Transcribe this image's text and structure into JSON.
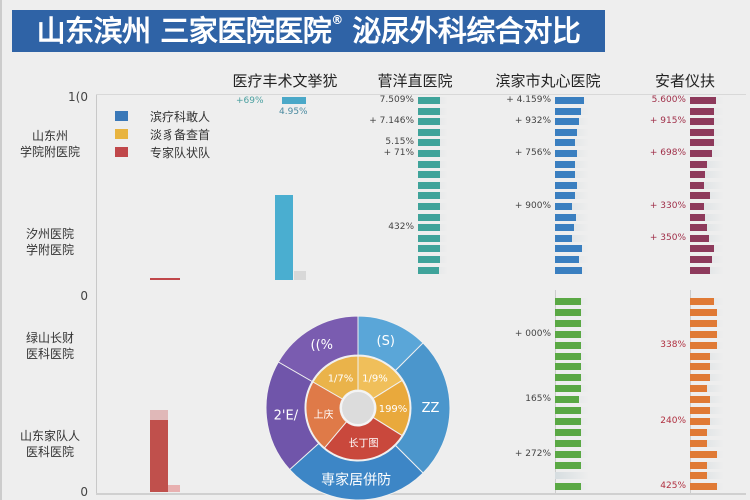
{
  "title": {
    "text": "山东滨州 三家医院医院",
    "mark": "®",
    "text2": "泌尿外科综合对比"
  },
  "chart_data": {
    "type": "bar",
    "title": "山东滨州 三家医院医院® 泌尿外科综合对比",
    "y_ticks": [
      "1(0",
      "0",
      "0"
    ],
    "row_labels": [
      [
        "山东州",
        "学院附医院"
      ],
      [
        "汐州医院",
        "学附医院"
      ],
      [
        "绿山长财",
        "医科医院"
      ],
      [
        "山东家队人",
        "医科医院"
      ]
    ],
    "column_titles": [
      "医疗丰术文挙犹",
      "菅洋直医院",
      "滨家市丸心医院",
      "安者仪扶"
    ],
    "legend": [
      {
        "label": "滨疗科敢人",
        "color": "#3a78b8"
      },
      {
        "label": "淡豸备查首",
        "color": "#e8b440"
      },
      {
        "label": "专家队状队",
        "color": "#c0474a"
      }
    ],
    "left_bars": {
      "top_label_left": "+69%",
      "top_label": "4.95%",
      "teal_value": 0.47,
      "red_small_value": 0.01,
      "red_bottom_value": 0.37
    },
    "bar_columns": [
      {
        "name": "菅洋直医院",
        "color": "#3fa39a",
        "values": [
          0.73,
          0.73,
          0.73,
          0.73,
          0.73,
          0.73,
          0.73,
          0.73,
          0.73,
          0.73,
          0.73,
          0.73,
          0.72,
          0.72,
          0.72,
          0.72,
          0.71
        ],
        "labels": [
          {
            "row": 0,
            "text": "7.509%"
          },
          {
            "row": 2,
            "text": "+ 7.146%"
          },
          {
            "row": 4,
            "text": "5.15%"
          },
          {
            "row": 5,
            "text": "+ 71%"
          },
          {
            "row": 12,
            "text": "432%"
          }
        ],
        "label_color": "#444"
      },
      {
        "name": "滨家市丸心医院",
        "color": "#3a7fc0",
        "values": [
          0.85,
          0.75,
          0.7,
          0.65,
          0.6,
          0.65,
          0.6,
          0.58,
          0.66,
          0.6,
          0.5,
          0.62,
          0.55,
          0.5,
          0.8,
          0.7,
          0.78
        ],
        "labels": [
          {
            "row": 0,
            "text": "+ 4.159%"
          },
          {
            "row": 2,
            "text": "+ 932%"
          },
          {
            "row": 5,
            "text": "+ 756%"
          },
          {
            "row": 10,
            "text": "+ 900%"
          }
        ],
        "label_color": "#444"
      },
      {
        "name": "安者仪扶",
        "color": "#8e3a5c",
        "values": [
          0.75,
          0.72,
          0.72,
          0.72,
          0.7,
          0.65,
          0.5,
          0.45,
          0.4,
          0.6,
          0.42,
          0.45,
          0.5,
          0.55,
          0.72,
          0.65,
          0.6
        ],
        "labels": [
          {
            "row": 0,
            "text": "5.600%"
          },
          {
            "row": 2,
            "text": "+ 915%"
          },
          {
            "row": 5,
            "text": "+ 698%"
          },
          {
            "row": 10,
            "text": "+ 330%"
          },
          {
            "row": 13,
            "text": "+ 350%"
          }
        ],
        "label_color": "#a0304a"
      },
      {
        "name": "green",
        "color": "#5aa844",
        "values": [
          0.75,
          0.75,
          0.75,
          0.75,
          0.75,
          0.75,
          0.75,
          0.75,
          0.75,
          0.7,
          0.75,
          0.75,
          0.75,
          0.75,
          0.75,
          0.75,
          0,
          0.75
        ],
        "labels": [
          {
            "row": 3,
            "text": "+ 000%"
          },
          {
            "row": 9,
            "text": "165%"
          },
          {
            "row": 14,
            "text": "+ 272%"
          }
        ],
        "label_color": "#444"
      },
      {
        "name": "orange",
        "color": "#e07a35",
        "values": [
          0.7,
          0.8,
          0.8,
          0.8,
          0.8,
          0.6,
          0.6,
          0.6,
          0.5,
          0.6,
          0.6,
          0.6,
          0.5,
          0.5,
          0.8,
          0.5,
          0.5,
          0.8
        ],
        "labels": [
          {
            "row": 4,
            "text": "338%"
          },
          {
            "row": 11,
            "text": "240%"
          },
          {
            "row": 17,
            "text": "425%"
          }
        ],
        "label_color": "#b03040"
      }
    ],
    "donut": {
      "outer": [
        {
          "label": "((%",
          "color": "#7a5cb0"
        },
        {
          "label": "(S)",
          "color": "#5aa6d8"
        },
        {
          "label": "ZZ",
          "color": "#4b96cc"
        },
        {
          "label": "専家居併防",
          "color": "#3d86c6"
        },
        {
          "label": "2'E/",
          "color": "#7055aa"
        }
      ],
      "inner": [
        {
          "label": "1/7%",
          "color": "#eab34a"
        },
        {
          "label": "1/9%",
          "color": "#f0bf5a"
        },
        {
          "label": "199%",
          "color": "#e9a93c"
        },
        {
          "label": "长丁图",
          "color": "#c9483c"
        },
        {
          "label": "上庆",
          "color": "#df7a48"
        }
      ]
    }
  }
}
